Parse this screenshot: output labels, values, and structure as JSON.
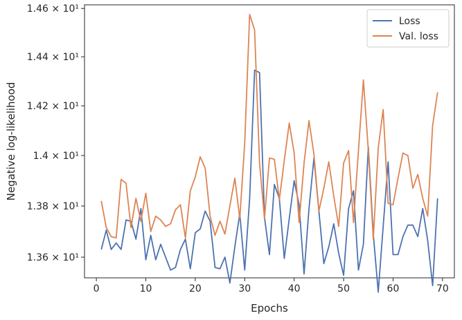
{
  "chart_data": {
    "type": "line",
    "xlabel": "Epochs",
    "ylabel": "Negative log-likelihood",
    "yscale": "log",
    "xlim": [
      -2.4,
      72.4
    ],
    "ylim": [
      13.52,
      14.615
    ],
    "xticks": [
      0,
      10,
      20,
      30,
      40,
      50,
      60,
      70
    ],
    "yticks": [
      {
        "value": 13.6,
        "label": "1.36 × 10¹"
      },
      {
        "value": 13.8,
        "label": "1.38 × 10¹"
      },
      {
        "value": 14.0,
        "label": "1.4 × 10¹"
      },
      {
        "value": 14.2,
        "label": "1.42 × 10¹"
      },
      {
        "value": 14.4,
        "label": "1.44 × 10¹"
      },
      {
        "value": 14.6,
        "label": "1.46 × 10¹"
      }
    ],
    "grid": false,
    "legend_position": "top-right",
    "x": [
      1,
      2,
      3,
      4,
      5,
      6,
      7,
      8,
      9,
      10,
      11,
      12,
      13,
      14,
      15,
      16,
      17,
      18,
      19,
      20,
      21,
      22,
      23,
      24,
      25,
      26,
      27,
      28,
      29,
      30,
      31,
      32,
      33,
      34,
      35,
      36,
      37,
      38,
      39,
      40,
      41,
      42,
      43,
      44,
      45,
      46,
      47,
      48,
      49,
      50,
      51,
      52,
      53,
      54,
      55,
      56,
      57,
      58,
      59,
      60,
      61,
      62,
      63,
      64,
      65,
      66,
      67,
      68,
      69
    ],
    "series": [
      {
        "name": "Loss",
        "color": "#4c72b0",
        "values": [
          13.63,
          13.705,
          13.63,
          13.655,
          13.63,
          13.745,
          13.74,
          13.67,
          13.79,
          13.59,
          13.685,
          13.59,
          13.65,
          13.6,
          13.55,
          13.56,
          13.63,
          13.67,
          13.555,
          13.695,
          13.71,
          13.78,
          13.74,
          13.56,
          13.555,
          13.6,
          13.5,
          13.64,
          13.77,
          13.55,
          13.83,
          14.345,
          14.335,
          13.755,
          13.61,
          13.885,
          13.83,
          13.595,
          13.75,
          13.9,
          13.805,
          13.535,
          13.79,
          13.99,
          13.78,
          13.575,
          13.64,
          13.73,
          13.615,
          13.53,
          13.79,
          13.86,
          13.55,
          13.65,
          14.035,
          13.69,
          13.465,
          13.72,
          13.975,
          13.61,
          13.61,
          13.68,
          13.725,
          13.725,
          13.68,
          13.79,
          13.665,
          13.49,
          13.83
        ]
      },
      {
        "name": "Val. loss",
        "color": "#dd8452",
        "values": [
          13.82,
          13.715,
          13.68,
          13.675,
          13.905,
          13.89,
          13.715,
          13.83,
          13.74,
          13.85,
          13.7,
          13.76,
          13.745,
          13.72,
          13.73,
          13.785,
          13.805,
          13.675,
          13.86,
          13.915,
          13.995,
          13.95,
          13.76,
          13.685,
          13.74,
          13.69,
          13.8,
          13.91,
          13.75,
          14.05,
          14.575,
          14.51,
          13.97,
          13.75,
          13.99,
          13.985,
          13.825,
          13.98,
          14.13,
          14.01,
          13.735,
          13.97,
          14.14,
          14.005,
          13.78,
          13.87,
          13.975,
          13.84,
          13.72,
          13.97,
          14.02,
          13.735,
          14.02,
          14.305,
          14.02,
          13.67,
          14.03,
          14.185,
          13.81,
          13.805,
          13.91,
          14.01,
          14.0,
          13.87,
          13.925,
          13.83,
          13.76,
          14.12,
          14.255
        ]
      }
    ]
  }
}
